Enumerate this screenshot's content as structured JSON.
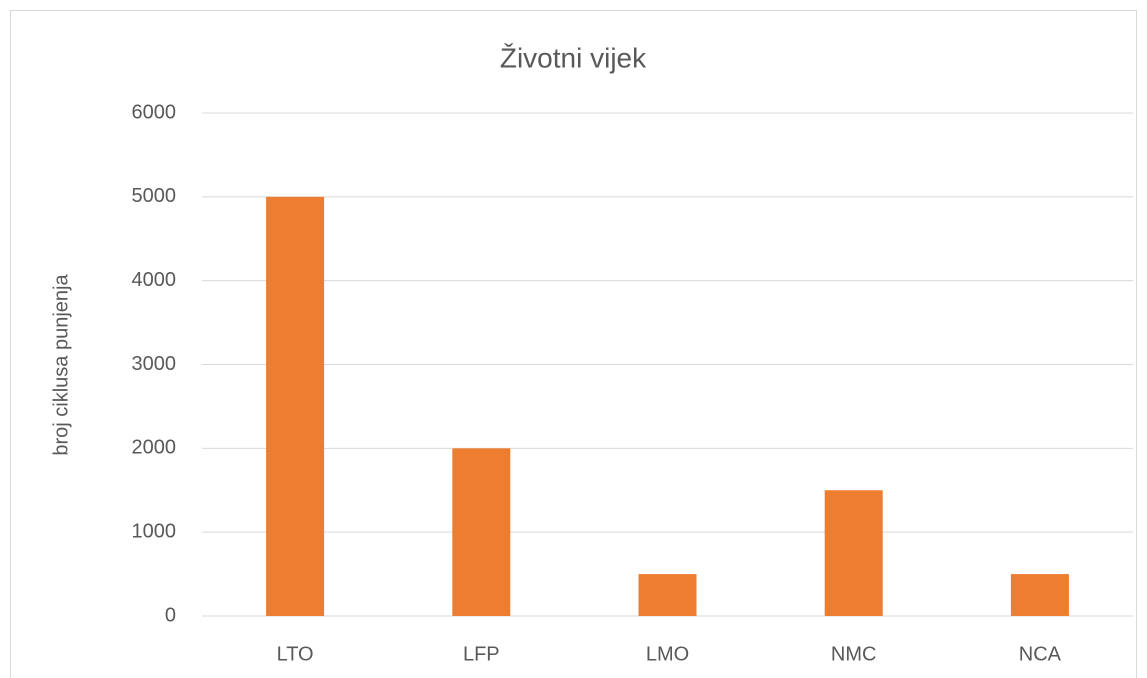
{
  "chart_data": {
    "type": "bar",
    "title": "Životni vijek",
    "y_label": "broj ciklusa punjenja",
    "categories": [
      "LTO",
      "LFP",
      "LMO",
      "NMC",
      "NCA"
    ],
    "values": [
      5000,
      2000,
      500,
      1500,
      500
    ],
    "color": "#ed7d31",
    "ylim": [
      0,
      6000
    ],
    "yticks": [
      0,
      1000,
      2000,
      3000,
      4000,
      5000,
      6000
    ],
    "grid": true
  }
}
